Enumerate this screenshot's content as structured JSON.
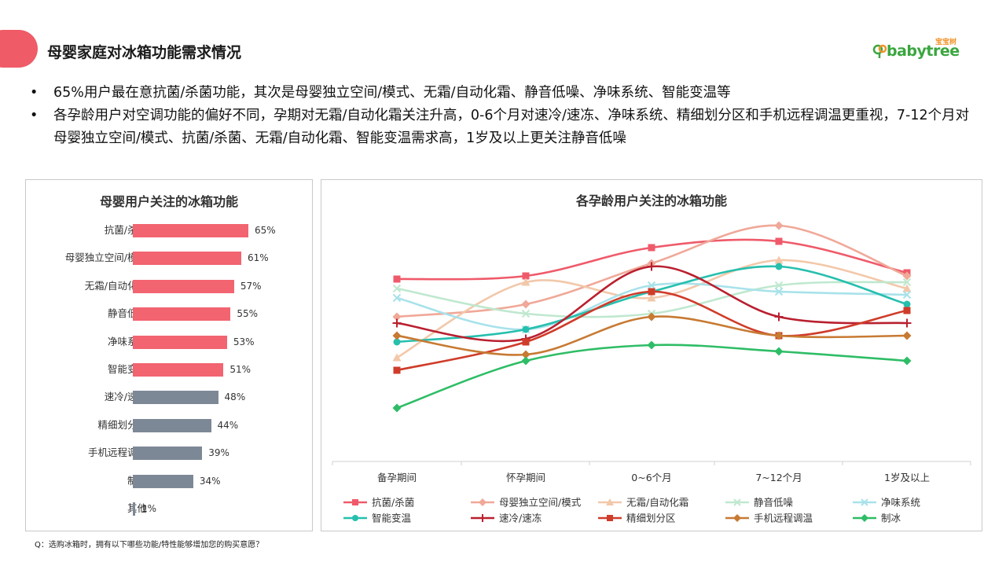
{
  "header": {
    "title": "母婴家庭对冰箱功能需求情况",
    "logo_small": "宝宝树",
    "logo_brand": "babytree"
  },
  "bullets": [
    "65%用户最在意抗菌/杀菌功能，其次是母婴独立空间/模式、无霜/自动化霜、静音低噪、净味系统、智能变温等",
    "各孕龄用户对空调功能的偏好不同，孕期对无霜/自动化霜关注升高，0-6个月对速冷/速冻、净味系统、精细划分区和手机远程调温更重视，7-12个月对母婴独立空间/模式、抗菌/杀菌、无霜/自动化霜、智能变温需求高，1岁及以上更关注静音低噪"
  ],
  "footnote": "Q：选购冰箱时，拥有以下哪些功能/特性能够增加您的购买意愿？",
  "colors": {
    "accent": "#ef5b66",
    "bar_pink": "#f26470",
    "bar_gray": "#7d8897"
  },
  "chart_data": [
    {
      "type": "bar",
      "orientation": "horizontal",
      "title": "母婴用户关注的冰箱功能",
      "categories": [
        "抗菌/杀菌",
        "母婴独立空间/模式",
        "无霜/自动化霜",
        "静音低噪",
        "净味系统",
        "智能变温",
        "速冷/速冻",
        "精细划分区",
        "手机远程调温",
        "制冰",
        "其他"
      ],
      "values": [
        65,
        61,
        57,
        55,
        53,
        51,
        48,
        44,
        39,
        34,
        1
      ],
      "labels": [
        "65%",
        "61%",
        "57%",
        "55%",
        "53%",
        "51%",
        "48%",
        "44%",
        "39%",
        "34%",
        "1%"
      ],
      "highlight_count": 6,
      "unit": "%"
    },
    {
      "type": "line",
      "smooth": true,
      "title": "各孕龄用户关注的冰箱功能",
      "categories": [
        "备孕期间",
        "怀孕期间",
        "0~6个月",
        "7~12个月",
        "1岁及以上"
      ],
      "ylim": [
        0,
        75
      ],
      "grid": false,
      "legend": "bottom",
      "series": [
        {
          "name": "抗菌/杀菌",
          "color": "#ef5a6a",
          "marker": "square",
          "values": [
            58,
            59,
            68,
            70,
            60
          ]
        },
        {
          "name": "母婴独立空间/模式",
          "color": "#f0a898",
          "marker": "diamond",
          "values": [
            46,
            50,
            63,
            75,
            59
          ]
        },
        {
          "name": "无霜/自动化霜",
          "color": "#f2c8aa",
          "marker": "triangle",
          "values": [
            33,
            57,
            52,
            64,
            55
          ]
        },
        {
          "name": "静音低噪",
          "color": "#bfe8cf",
          "marker": "x",
          "values": [
            55,
            47,
            47,
            56,
            57
          ]
        },
        {
          "name": "净味系统",
          "color": "#a8e2ea",
          "marker": "x",
          "values": [
            52,
            42,
            56,
            54,
            53
          ]
        },
        {
          "name": "智能变温",
          "color": "#26bfae",
          "marker": "circle",
          "values": [
            38,
            42,
            54,
            62,
            50
          ]
        },
        {
          "name": "速冷/速冻",
          "color": "#b9202f",
          "marker": "plus",
          "values": [
            44,
            39,
            62,
            46,
            44
          ]
        },
        {
          "name": "精细划分区",
          "color": "#cf3c2a",
          "marker": "square",
          "values": [
            29,
            38,
            54,
            40,
            48
          ]
        },
        {
          "name": "手机远程调温",
          "color": "#c77a33",
          "marker": "diamond",
          "values": [
            40,
            34,
            46,
            40,
            40
          ]
        },
        {
          "name": "制冰",
          "color": "#2ebd66",
          "marker": "diamond",
          "values": [
            17,
            32,
            37,
            35,
            32
          ]
        }
      ]
    }
  ]
}
